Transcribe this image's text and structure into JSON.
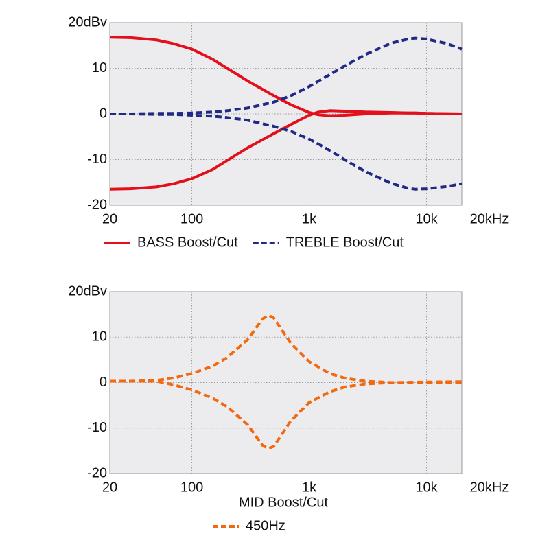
{
  "chart_data": [
    {
      "type": "line",
      "xscale": "log",
      "grid": true,
      "xlim": [
        20,
        20000
      ],
      "ylim": [
        -20,
        20
      ],
      "xticks": [
        20,
        100,
        {
          "value": 1000,
          "label": "1k"
        },
        {
          "value": 10000,
          "label": "10k"
        },
        {
          "value": 20000,
          "label": "20kHz"
        }
      ],
      "yticks": [
        {
          "value": 20,
          "label": "20dBv"
        },
        10,
        0,
        -10,
        -20
      ],
      "x": [
        20,
        30,
        50,
        70,
        100,
        150,
        200,
        300,
        500,
        700,
        1000,
        1200,
        1500,
        2000,
        3000,
        5000,
        7000,
        8000,
        10000,
        15000,
        20000
      ],
      "series": [
        {
          "name": "BASS Boost/Cut",
          "color": "#e3101c",
          "dashed": false,
          "boost": [
            16.8,
            16.7,
            16.2,
            15.4,
            14.2,
            12,
            10,
            7.2,
            4,
            2,
            0.3,
            -0.2,
            -0.4,
            -0.3,
            0,
            0.2,
            0.2,
            0.2,
            0.1,
            0.05,
            0
          ],
          "cut": [
            -16.5,
            -16.4,
            -16,
            -15.3,
            -14.2,
            -12.2,
            -10.2,
            -7.4,
            -4.3,
            -2.3,
            -0.3,
            0.4,
            0.7,
            0.6,
            0.4,
            0.3,
            0.2,
            0.2,
            0.1,
            0.05,
            0
          ]
        },
        {
          "name": "TREBLE Boost/Cut",
          "color": "#1f2a84",
          "dashed": true,
          "boost": [
            0,
            0,
            0.1,
            0.1,
            0.2,
            0.4,
            0.7,
            1.3,
            2.6,
            4,
            6,
            7.2,
            8.6,
            10.5,
            13,
            15.5,
            16.4,
            16.6,
            16.4,
            15.4,
            14.2
          ],
          "cut": [
            0,
            0,
            -0.1,
            -0.1,
            -0.3,
            -0.5,
            -0.8,
            -1.4,
            -2.7,
            -3.8,
            -5.5,
            -6.6,
            -8,
            -10,
            -12.6,
            -15.2,
            -16.3,
            -16.5,
            -16.4,
            -15.9,
            -15.3
          ]
        }
      ]
    },
    {
      "type": "line",
      "xscale": "log",
      "grid": true,
      "xlabel": "MID Boost/Cut",
      "xlim": [
        20,
        20000
      ],
      "ylim": [
        -20,
        20
      ],
      "xticks": [
        20,
        100,
        {
          "value": 1000,
          "label": "1k"
        },
        {
          "value": 10000,
          "label": "10k"
        },
        {
          "value": 20000,
          "label": "20kHz"
        }
      ],
      "yticks": [
        {
          "value": 20,
          "label": "20dBv"
        },
        10,
        0,
        -10,
        -20
      ],
      "x": [
        20,
        30,
        50,
        70,
        100,
        150,
        200,
        300,
        400,
        450,
        500,
        700,
        1000,
        1500,
        2000,
        3000,
        5000,
        10000,
        20000
      ],
      "series": [
        {
          "name": "450Hz",
          "color": "#f26a10",
          "dashed": true,
          "boost": [
            0.3,
            0.3,
            0.5,
            1,
            2,
            3.6,
            5.5,
            9.5,
            14,
            14.8,
            14.2,
            8.6,
            4.6,
            2,
            1,
            0.3,
            0,
            0.1,
            0.2
          ],
          "cut": [
            0.3,
            0.3,
            0.3,
            -0.5,
            -1.6,
            -3.4,
            -5.3,
            -9.3,
            -13.8,
            -14.5,
            -14,
            -8.4,
            -4.4,
            -2,
            -1,
            -0.3,
            0,
            0,
            0
          ]
        }
      ]
    }
  ]
}
